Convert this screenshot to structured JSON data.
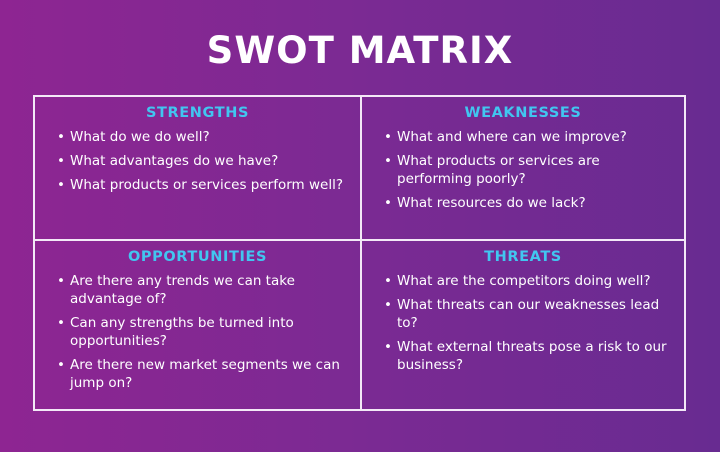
{
  "title": "SWOT MATRIX",
  "colors": {
    "heading": "#41c6f0",
    "text": "#ffffff",
    "background_left": "#8e2592",
    "background_right": "#682b91",
    "border": "#f3e9f7"
  },
  "quadrants": [
    {
      "title": "STRENGTHS",
      "items": [
        "What do we do well?",
        "What advantages do we have?",
        "What products or services perform well?"
      ]
    },
    {
      "title": "WEAKNESSES",
      "items": [
        "What and where can we improve?",
        "What products or services are performing poorly?",
        "What resources do we lack?"
      ]
    },
    {
      "title": "OPPORTUNITIES",
      "items": [
        "Are there any trends we can take advantage of?",
        "Can any strengths be turned into opportunities?",
        "Are there new market segments we can jump on?"
      ]
    },
    {
      "title": "THREATS",
      "items": [
        "What are the competitors doing well?",
        "What threats can our weaknesses lead to?",
        "What external threats pose a risk to our business?"
      ]
    }
  ]
}
